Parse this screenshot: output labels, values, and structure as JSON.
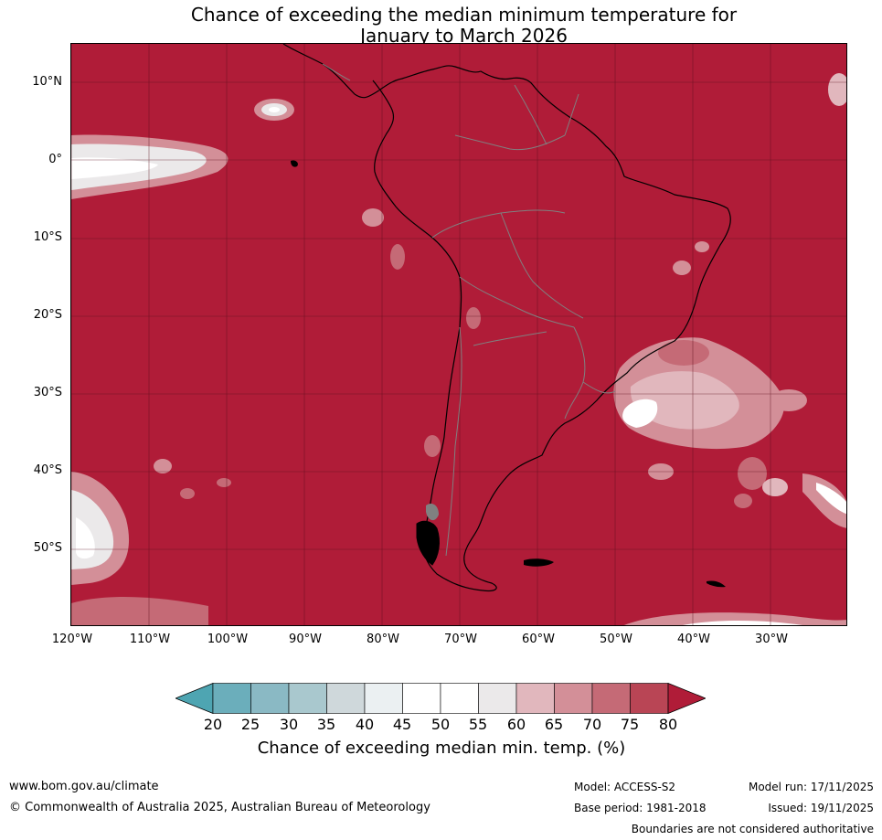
{
  "title": {
    "line1": "Chance of exceeding the median minimum temperature for",
    "line2": "January to March 2026"
  },
  "map": {
    "lat_labels": [
      "10°N",
      "0°",
      "10°S",
      "20°S",
      "30°S",
      "40°S",
      "50°S"
    ],
    "lon_labels": [
      "120°W",
      "110°W",
      "100°W",
      "90°W",
      "80°W",
      "70°W",
      "60°W",
      "50°W",
      "40°W",
      "30°W"
    ],
    "dominant_class": "above 80%",
    "colors": {
      "ocean_high": "#b01c38",
      "coastline": "#000000",
      "borders": "#808080",
      "gridline": "#5a0f1c"
    }
  },
  "legend": {
    "title": "Chance of exceeding median min. temp. (%)",
    "ticks": [
      "20",
      "25",
      "30",
      "35",
      "40",
      "45",
      "50",
      "55",
      "60",
      "65",
      "70",
      "75",
      "80"
    ],
    "colors": [
      "#4ea5b2",
      "#6baebb",
      "#8ab9c4",
      "#a9c8ce",
      "#cfd8db",
      "#ebf0f2",
      "#ffffff",
      "#ffffff",
      "#ebe9ea",
      "#e1b7bd",
      "#d38f98",
      "#c56a76",
      "#b94555",
      "#b01c38"
    ]
  },
  "footer": {
    "website": "www.bom.gov.au/climate",
    "copyright": "© Commonwealth of Australia 2025, Australian Bureau of Meteorology",
    "model": "Model: ACCESS-S2",
    "base_period": "Base period: 1981-2018",
    "model_run": "Model run: 17/11/2025",
    "issued": "Issued: 19/11/2025",
    "disclaimer": "Boundaries are not considered authoritative"
  }
}
